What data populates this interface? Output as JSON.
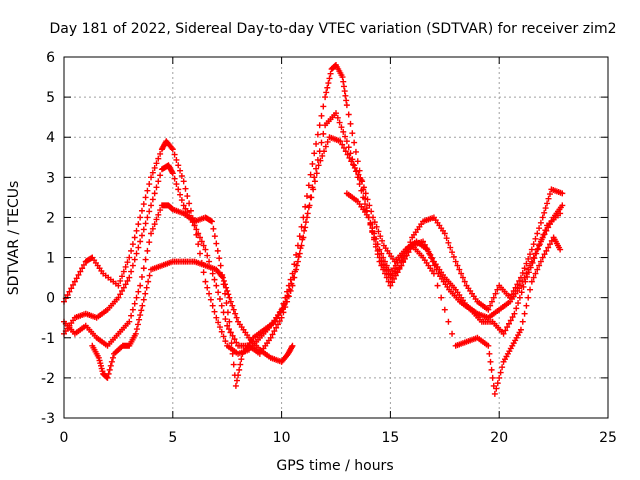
{
  "chart_data": {
    "type": "scatter",
    "title": "Day 181 of 2022, Sidereal Day-to-day VTEC variation (SDTVAR) for receiver zim2",
    "xlabel": "GPS time / hours",
    "ylabel": "SDTVAR / TECUs",
    "xlim": [
      0,
      25
    ],
    "ylim": [
      -3,
      6
    ],
    "x_ticks": [
      "0",
      "5",
      "10",
      "15",
      "20",
      "25"
    ],
    "y_ticks": [
      "-3",
      "-2",
      "-1",
      "0",
      "1",
      "2",
      "3",
      "4",
      "5",
      "6"
    ],
    "grid": true,
    "marker": "+",
    "color": "#ff0000",
    "series": [
      {
        "points": [
          [
            0,
            -0.9
          ],
          [
            0.5,
            -0.5
          ],
          [
            1.0,
            -0.4
          ],
          [
            1.5,
            -0.5
          ],
          [
            2.0,
            -0.3
          ],
          [
            2.5,
            0.0
          ],
          [
            3.0,
            0.5
          ],
          [
            3.5,
            1.4
          ],
          [
            4.0,
            2.3
          ],
          [
            4.5,
            3.2
          ],
          [
            4.8,
            3.3
          ],
          [
            5.0,
            3.1
          ],
          [
            5.5,
            2.3
          ],
          [
            6.0,
            1.8
          ],
          [
            6.5,
            1.2
          ],
          [
            7.0,
            0.3
          ],
          [
            7.5,
            -0.7
          ],
          [
            8.0,
            -1.2
          ],
          [
            8.5,
            -1.2
          ],
          [
            9.0,
            -1.4
          ],
          [
            9.5,
            -1.0
          ],
          [
            10.0,
            -0.5
          ],
          [
            10.5,
            0.3
          ],
          [
            11.0,
            1.5
          ],
          [
            11.5,
            3.0
          ],
          [
            12.0,
            4.3
          ],
          [
            12.5,
            4.6
          ],
          [
            13.0,
            3.9
          ],
          [
            13.5,
            3.0
          ],
          [
            14.0,
            2.0
          ],
          [
            14.5,
            1.0
          ],
          [
            15.0,
            0.5
          ],
          [
            15.5,
            0.8
          ],
          [
            16.0,
            1.3
          ],
          [
            16.5,
            1.4
          ],
          [
            17.0,
            0.9
          ],
          [
            17.5,
            0.5
          ],
          [
            18.0,
            0.2
          ],
          [
            18.5,
            -0.2
          ],
          [
            19.0,
            -0.4
          ],
          [
            19.5,
            -0.5
          ],
          [
            20.0,
            -0.3
          ],
          [
            20.5,
            -0.1
          ],
          [
            21.0,
            0.3
          ],
          [
            21.5,
            0.9
          ],
          [
            22.0,
            1.5
          ],
          [
            22.5,
            2.0
          ],
          [
            22.9,
            2.3
          ]
        ]
      },
      {
        "points": [
          [
            0,
            -0.1
          ],
          [
            0.5,
            0.4
          ],
          [
            1.0,
            0.9
          ],
          [
            1.3,
            1.0
          ],
          [
            1.8,
            0.6
          ],
          [
            2.5,
            0.3
          ],
          [
            3.0,
            1.0
          ],
          [
            3.5,
            2.0
          ],
          [
            4.0,
            3.0
          ],
          [
            4.5,
            3.7
          ],
          [
            4.7,
            3.9
          ],
          [
            5.0,
            3.7
          ],
          [
            5.5,
            2.9
          ],
          [
            6.0,
            1.8
          ],
          [
            6.5,
            0.4
          ],
          [
            7.0,
            -0.5
          ],
          [
            7.5,
            -1.2
          ],
          [
            8.0,
            -1.4
          ],
          [
            8.5,
            -1.3
          ],
          [
            9.0,
            -1.0
          ],
          [
            9.5,
            -0.7
          ],
          [
            10.0,
            -0.3
          ],
          [
            10.5,
            0.6
          ],
          [
            11.0,
            2.0
          ],
          [
            11.5,
            3.6
          ],
          [
            12.0,
            5.0
          ],
          [
            12.3,
            5.7
          ],
          [
            12.5,
            5.8
          ],
          [
            12.8,
            5.5
          ],
          [
            13.0,
            4.8
          ],
          [
            13.5,
            3.4
          ],
          [
            14.0,
            2.0
          ],
          [
            14.5,
            0.9
          ],
          [
            15.0,
            0.3
          ],
          [
            15.5,
            0.8
          ],
          [
            16.0,
            1.5
          ],
          [
            16.5,
            1.9
          ],
          [
            17.0,
            2.0
          ],
          [
            17.5,
            1.6
          ],
          [
            18.0,
            0.9
          ],
          [
            18.5,
            0.3
          ],
          [
            19.0,
            -0.1
          ],
          [
            19.5,
            -0.3
          ],
          [
            20.0,
            0.3
          ],
          [
            20.5,
            0.0
          ],
          [
            21.0,
            0.5
          ],
          [
            21.5,
            1.2
          ],
          [
            22.0,
            2.0
          ],
          [
            22.4,
            2.7
          ],
          [
            22.9,
            2.6
          ]
        ]
      },
      {
        "points": [
          [
            0,
            -0.6
          ],
          [
            0.5,
            -0.9
          ],
          [
            1.0,
            -0.7
          ],
          [
            1.5,
            -1.0
          ],
          [
            2.0,
            -1.2
          ],
          [
            2.5,
            -0.9
          ],
          [
            3.0,
            -0.6
          ],
          [
            3.5,
            0.3
          ],
          [
            4.0,
            1.6
          ],
          [
            4.5,
            2.3
          ],
          [
            4.8,
            2.3
          ],
          [
            5.0,
            2.2
          ],
          [
            5.5,
            2.1
          ],
          [
            6.0,
            1.9
          ],
          [
            6.5,
            2.0
          ],
          [
            6.8,
            1.9
          ],
          [
            7.2,
            0.8
          ],
          [
            7.6,
            -0.6
          ],
          [
            7.9,
            -2.2
          ],
          [
            8.2,
            -1.4
          ],
          [
            8.7,
            -1.0
          ],
          [
            9.2,
            -0.8
          ],
          [
            9.7,
            -0.6
          ],
          [
            10.2,
            -0.1
          ],
          [
            10.7,
            0.8
          ],
          [
            11.2,
            2.1
          ],
          [
            11.7,
            3.3
          ],
          [
            12.2,
            4.0
          ],
          [
            12.7,
            3.9
          ],
          [
            13.2,
            3.4
          ],
          [
            13.7,
            2.9
          ],
          [
            14.2,
            2.0
          ],
          [
            14.7,
            1.3
          ],
          [
            15.2,
            0.9
          ],
          [
            15.7,
            1.2
          ],
          [
            16.2,
            1.4
          ],
          [
            16.7,
            1.2
          ],
          [
            17.2,
            0.6
          ],
          [
            17.7,
            0.2
          ],
          [
            18.2,
            -0.1
          ],
          [
            18.7,
            -0.3
          ],
          [
            19.2,
            -0.6
          ],
          [
            19.7,
            -0.6
          ],
          [
            20.2,
            -0.9
          ],
          [
            20.7,
            -0.4
          ],
          [
            21.2,
            0.4
          ],
          [
            21.7,
            1.1
          ],
          [
            22.2,
            1.8
          ],
          [
            22.8,
            2.1
          ]
        ]
      },
      {
        "points": [
          [
            1.3,
            -1.2
          ],
          [
            1.6,
            -1.5
          ],
          [
            1.8,
            -1.9
          ],
          [
            2.0,
            -2.0
          ],
          [
            2.3,
            -1.4
          ],
          [
            2.7,
            -1.2
          ],
          [
            3.0,
            -1.2
          ],
          [
            3.3,
            -0.9
          ],
          [
            3.6,
            -0.2
          ],
          [
            4.0,
            0.7
          ],
          [
            4.5,
            0.8
          ],
          [
            5.0,
            0.9
          ],
          [
            5.5,
            0.9
          ],
          [
            6.0,
            0.9
          ],
          [
            6.5,
            0.8
          ],
          [
            7.0,
            0.7
          ],
          [
            7.3,
            0.5
          ],
          [
            7.6,
            0.0
          ],
          [
            8.0,
            -0.6
          ],
          [
            8.5,
            -1.0
          ],
          [
            9.0,
            -1.3
          ],
          [
            9.5,
            -1.5
          ],
          [
            10.0,
            -1.6
          ],
          [
            10.3,
            -1.4
          ],
          [
            10.5,
            -1.2
          ],
          [
            13.0,
            2.6
          ],
          [
            13.5,
            2.4
          ],
          [
            14.0,
            2.0
          ],
          [
            14.5,
            1.2
          ],
          [
            15.0,
            0.6
          ],
          [
            15.5,
            1.0
          ],
          [
            16.0,
            1.3
          ],
          [
            16.5,
            1.0
          ],
          [
            17.0,
            0.6
          ],
          [
            18.0,
            -1.2
          ],
          [
            18.5,
            -1.1
          ],
          [
            19.0,
            -1.0
          ],
          [
            19.5,
            -1.2
          ],
          [
            19.8,
            -2.4
          ],
          [
            20.2,
            -1.6
          ],
          [
            20.6,
            -1.2
          ],
          [
            21.0,
            -0.8
          ],
          [
            21.5,
            0.4
          ],
          [
            22.0,
            1.0
          ],
          [
            22.5,
            1.5
          ],
          [
            22.8,
            1.2
          ]
        ]
      }
    ]
  }
}
